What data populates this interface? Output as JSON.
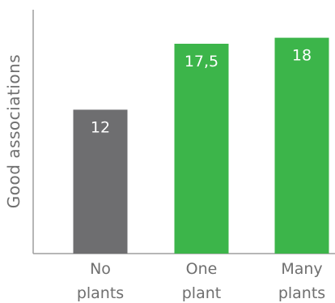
{
  "chart_data": {
    "type": "bar",
    "title": "",
    "xlabel": "",
    "ylabel": "Good associations",
    "categories": [
      [
        "No",
        "plants"
      ],
      [
        "One",
        "plant"
      ],
      [
        "Many",
        "plants"
      ]
    ],
    "values": [
      12,
      17.5,
      18
    ],
    "value_labels": [
      "12",
      "17,5",
      "18"
    ],
    "ylim": [
      0,
      20
    ],
    "grid": false,
    "legend": "none",
    "bar_colors": [
      "#6e6e70",
      "#3cb54a",
      "#3cb54a"
    ]
  }
}
